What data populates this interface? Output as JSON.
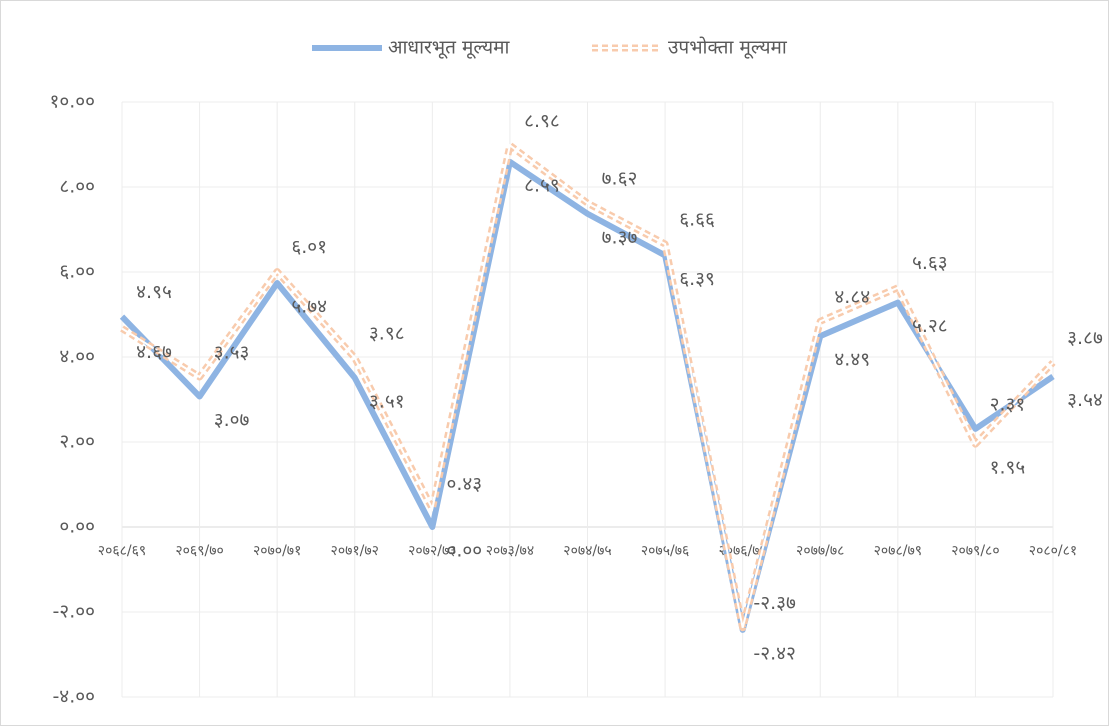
{
  "chart_data": {
    "type": "line",
    "categories": [
      "२०६८/६९",
      "२०६९/७०",
      "२०७०/७१",
      "२०७१/७२",
      "२०७२/७३",
      "२०७३/७४",
      "२०७४/७५",
      "२०७५/७६",
      "२०७६/७७",
      "२०७७/७८",
      "२०७८/७९",
      "२०७९/८०",
      "२०८०/८१"
    ],
    "series": [
      {
        "name": "आधारभूत मूल्यमा",
        "color": "#8eb4e3",
        "style": "solid",
        "values": [
          4.95,
          3.07,
          5.74,
          3.51,
          0.0,
          8.59,
          7.37,
          6.39,
          -2.42,
          4.49,
          5.28,
          2.31,
          3.54
        ],
        "value_labels": [
          "४.९५",
          "३.०७",
          "५.७४",
          "३.५१",
          "०.००",
          "८.५९",
          "७.३७",
          "६.३९",
          "-२.४२",
          "४.४९",
          "५.२८",
          "२.३१",
          "३.५४"
        ]
      },
      {
        "name": "उपभोक्ता मूल्यमा",
        "color": "#f8cbad",
        "style": "dashed",
        "values": [
          4.67,
          3.53,
          6.01,
          3.98,
          0.43,
          8.98,
          7.62,
          6.66,
          -2.37,
          4.84,
          5.63,
          1.95,
          3.87
        ],
        "value_labels": [
          "४.६७",
          "३.५३",
          "६.०१",
          "३.९८",
          "०.४३",
          "८.९८",
          "७.६२",
          "६.६६",
          "-२.३७",
          "४.८४",
          "५.६३",
          "१.९५",
          "३.८७"
        ]
      }
    ],
    "ylim": [
      -4,
      10
    ],
    "yticks": [
      {
        "value": -4,
        "label": "-४.००"
      },
      {
        "value": -2,
        "label": "-२.००"
      },
      {
        "value": 0,
        "label": "०.००"
      },
      {
        "value": 2,
        "label": "२.००"
      },
      {
        "value": 4,
        "label": "४.००"
      },
      {
        "value": 6,
        "label": "६.००"
      },
      {
        "value": 8,
        "label": "८.००"
      },
      {
        "value": 10,
        "label": "१०.००"
      }
    ],
    "grid": true,
    "legend": "top"
  }
}
